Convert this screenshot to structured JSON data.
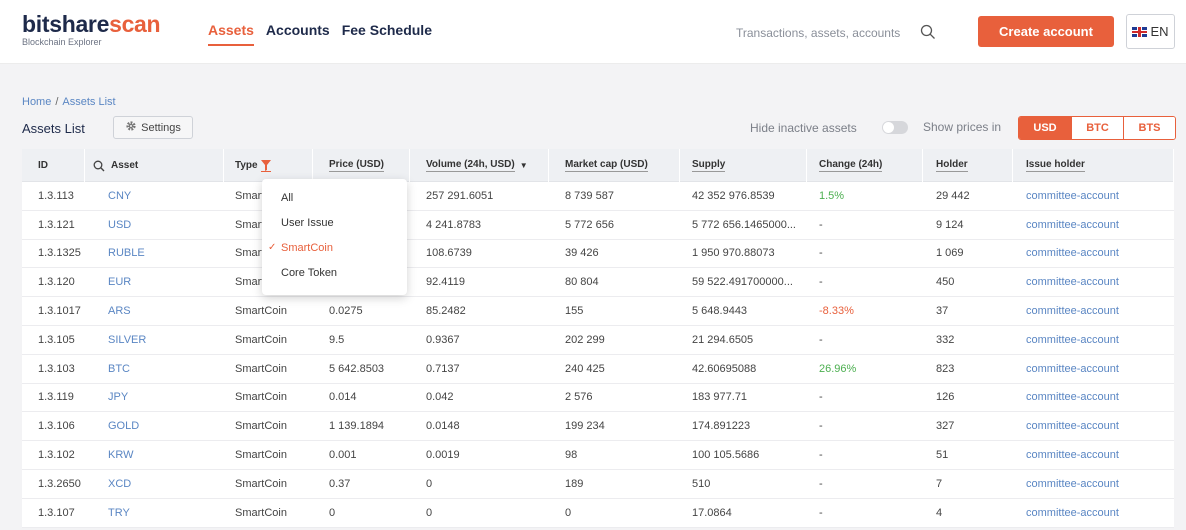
{
  "header": {
    "logo_part1": "bitshare",
    "logo_part2": "scan",
    "logo_sub": "Blockchain Explorer",
    "nav": [
      "Assets",
      "Accounts",
      "Fee Schedule"
    ],
    "search_placeholder": "Transactions, assets, accounts",
    "create_label": "Create account",
    "lang": "EN"
  },
  "subheader": {
    "breadcrumb": [
      "Home",
      "Assets List"
    ],
    "title": "Assets List",
    "settings_label": "Settings",
    "hide_inactive_label": "Hide inactive assets",
    "hide_inactive_on": false,
    "show_prices_label": "Show prices in",
    "currencies": [
      "USD",
      "BTC",
      "BTS"
    ],
    "active_currency": "USD"
  },
  "table": {
    "columns": [
      "ID",
      "Asset",
      "Type",
      "Price (USD)",
      "Volume (24h, USD)",
      "Market cap (USD)",
      "Supply",
      "Change (24h)",
      "Holder",
      "Issue holder"
    ],
    "rows": [
      [
        "1.3.113",
        "CNY",
        "SmartCoin",
        "",
        "257 291.6051",
        "8 739 587",
        "42 352 976.8539",
        "1.5%",
        "29 442",
        "committee-account"
      ],
      [
        "1.3.121",
        "USD",
        "SmartCoin",
        "",
        "4 241.8783",
        "5 772 656",
        "5 772 656.1465000...",
        "-",
        "9 124",
        "committee-account"
      ],
      [
        "1.3.1325",
        "RUBLE",
        "SmartCoin",
        "",
        "108.6739",
        "39 426",
        "1 950 970.88073",
        "-",
        "1 069",
        "committee-account"
      ],
      [
        "1.3.120",
        "EUR",
        "SmartCoin",
        "",
        "92.4119",
        "80 804",
        "59 522.491700000...",
        "-",
        "450",
        "committee-account"
      ],
      [
        "1.3.1017",
        "ARS",
        "SmartCoin",
        "0.0275",
        "85.2482",
        "155",
        "5 648.9443",
        "-8.33%",
        "37",
        "committee-account"
      ],
      [
        "1.3.105",
        "SILVER",
        "SmartCoin",
        "9.5",
        "0.9367",
        "202 299",
        "21 294.6505",
        "-",
        "332",
        "committee-account"
      ],
      [
        "1.3.103",
        "BTC",
        "SmartCoin",
        "5 642.8503",
        "0.7137",
        "240 425",
        "42.60695088",
        "26.96%",
        "823",
        "committee-account"
      ],
      [
        "1.3.119",
        "JPY",
        "SmartCoin",
        "0.014",
        "0.042",
        "2 576",
        "183 977.71",
        "-",
        "126",
        "committee-account"
      ],
      [
        "1.3.106",
        "GOLD",
        "SmartCoin",
        "1 139.1894",
        "0.0148",
        "199 234",
        "174.891223",
        "-",
        "327",
        "committee-account"
      ],
      [
        "1.3.102",
        "KRW",
        "SmartCoin",
        "0.001",
        "0.0019",
        "98",
        "100 105.5686",
        "-",
        "51",
        "committee-account"
      ],
      [
        "1.3.2650",
        "XCD",
        "SmartCoin",
        "0.37",
        "0",
        "189",
        "510",
        "-",
        "7",
        "committee-account"
      ],
      [
        "1.3.107",
        "TRY",
        "SmartCoin",
        "0",
        "0",
        "0",
        "17.0864",
        "-",
        "4",
        "committee-account"
      ]
    ]
  },
  "type_filter": {
    "options": [
      "All",
      "User Issue",
      "SmartCoin",
      "Core Token"
    ],
    "selected": "SmartCoin"
  },
  "colors": {
    "accent": "#e8603c",
    "link": "#5a86c3",
    "positive": "#4caf50",
    "negative": "#e8603c"
  }
}
